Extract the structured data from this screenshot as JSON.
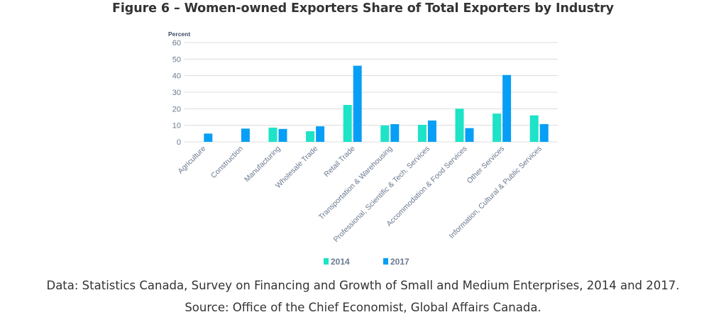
{
  "title": "Figure 6 – Women-owned Exporters Share of Total Exporters by Industry",
  "captions": {
    "data_line": "Data: Statistics Canada, Survey on Financing and Growth of Small and Medium Enterprises, 2014 and 2017.",
    "source_line": "Source: Office of the Chief Economist, Global Affairs Canada."
  },
  "chart_data": {
    "type": "bar",
    "title": "Figure 6 – Women-owned Exporters Share of Total Exporters by Industry",
    "xlabel": "",
    "ylabel": "Percent",
    "ylim": [
      0,
      60
    ],
    "yticks": [
      0,
      10,
      20,
      30,
      40,
      50,
      60
    ],
    "grid": true,
    "legend_position": "bottom",
    "categories": [
      "Agriculture",
      "Construction",
      "Manufacturing",
      "Wholesale Trade",
      "Retail Trade",
      "Transportation & Warehousing",
      "Professional, Scientific & Tech. Services",
      "Accommodation & Food Services",
      "Other Services",
      "Information, Cultural & Public Services"
    ],
    "series": [
      {
        "name": "2014",
        "color": "#1de3c7",
        "values": [
          null,
          null,
          8.6,
          6.4,
          22.3,
          9.9,
          10.3,
          20.0,
          17.1,
          16.0
        ]
      },
      {
        "name": "2017",
        "color": "#079ff5",
        "values": [
          5.0,
          8.0,
          7.8,
          9.4,
          46.0,
          10.7,
          12.9,
          8.3,
          40.4,
          10.7
        ]
      }
    ]
  }
}
